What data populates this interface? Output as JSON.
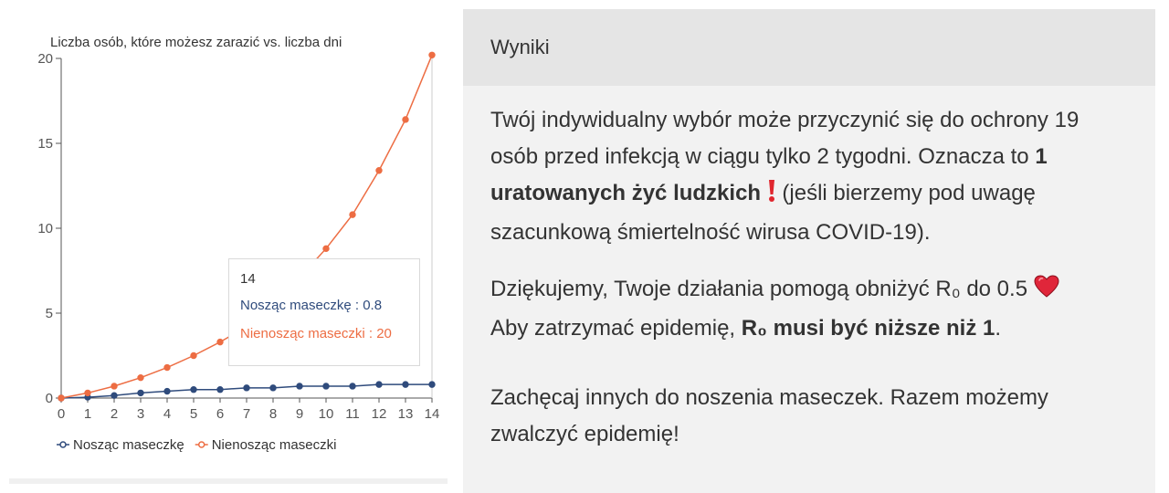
{
  "chart_data": {
    "type": "line",
    "title": "Liczba osób, które możesz zarazić vs. liczba dni",
    "x": [
      0,
      1,
      2,
      3,
      4,
      5,
      6,
      7,
      8,
      9,
      10,
      11,
      12,
      13,
      14
    ],
    "series": [
      {
        "name": "Nosząc maseczkę",
        "color": "#2f4b7c",
        "values": [
          0,
          0.05,
          0.15,
          0.3,
          0.4,
          0.5,
          0.5,
          0.6,
          0.6,
          0.7,
          0.7,
          0.7,
          0.8,
          0.8,
          0.8
        ]
      },
      {
        "name": "Nienosząc maseczki",
        "color": "#ed6d43",
        "values": [
          0,
          0.3,
          0.7,
          1.2,
          1.8,
          2.5,
          3.3,
          4.2,
          5.2,
          7.1,
          8.8,
          10.8,
          13.4,
          16.4,
          20.2
        ]
      }
    ],
    "xlim": [
      0,
      14
    ],
    "ylim": [
      0,
      20
    ],
    "yticks": [
      0,
      5,
      10,
      15,
      20
    ],
    "legend_position": "bottom-left",
    "grid": false
  },
  "tooltip": {
    "title": "14",
    "row1": "Nosząc maseczkę : 0.8",
    "row2": "Nienosząc maseczki : 20"
  },
  "results": {
    "header": "Wyniki",
    "p1_a": "Twój indywidualny wybór może przyczynić się do ochrony 19 osób przed infekcją w ciągu tylko 2 tygodni. Oznacza to",
    "p1_bold": "1 uratowanych żyć ludzkich",
    "p1_b": "(jeśli bierzemy pod uwagę szacunkową śmiertelność wirusa COVID-19).",
    "p2_a": "Dziękujemy, Twoje działania pomogą obniżyć R₀ do 0.5",
    "p2_b": "Aby zatrzymać epidemię,",
    "p2_bold": "R₀ musi być niższe niż 1",
    "p2_end": ".",
    "p3": "Zachęcaj innych do noszenia maseczek. Razem możemy zwalczyć epidemię!"
  },
  "icons": {
    "exclamation": "exclamation-icon",
    "heart": "heart-icon"
  }
}
